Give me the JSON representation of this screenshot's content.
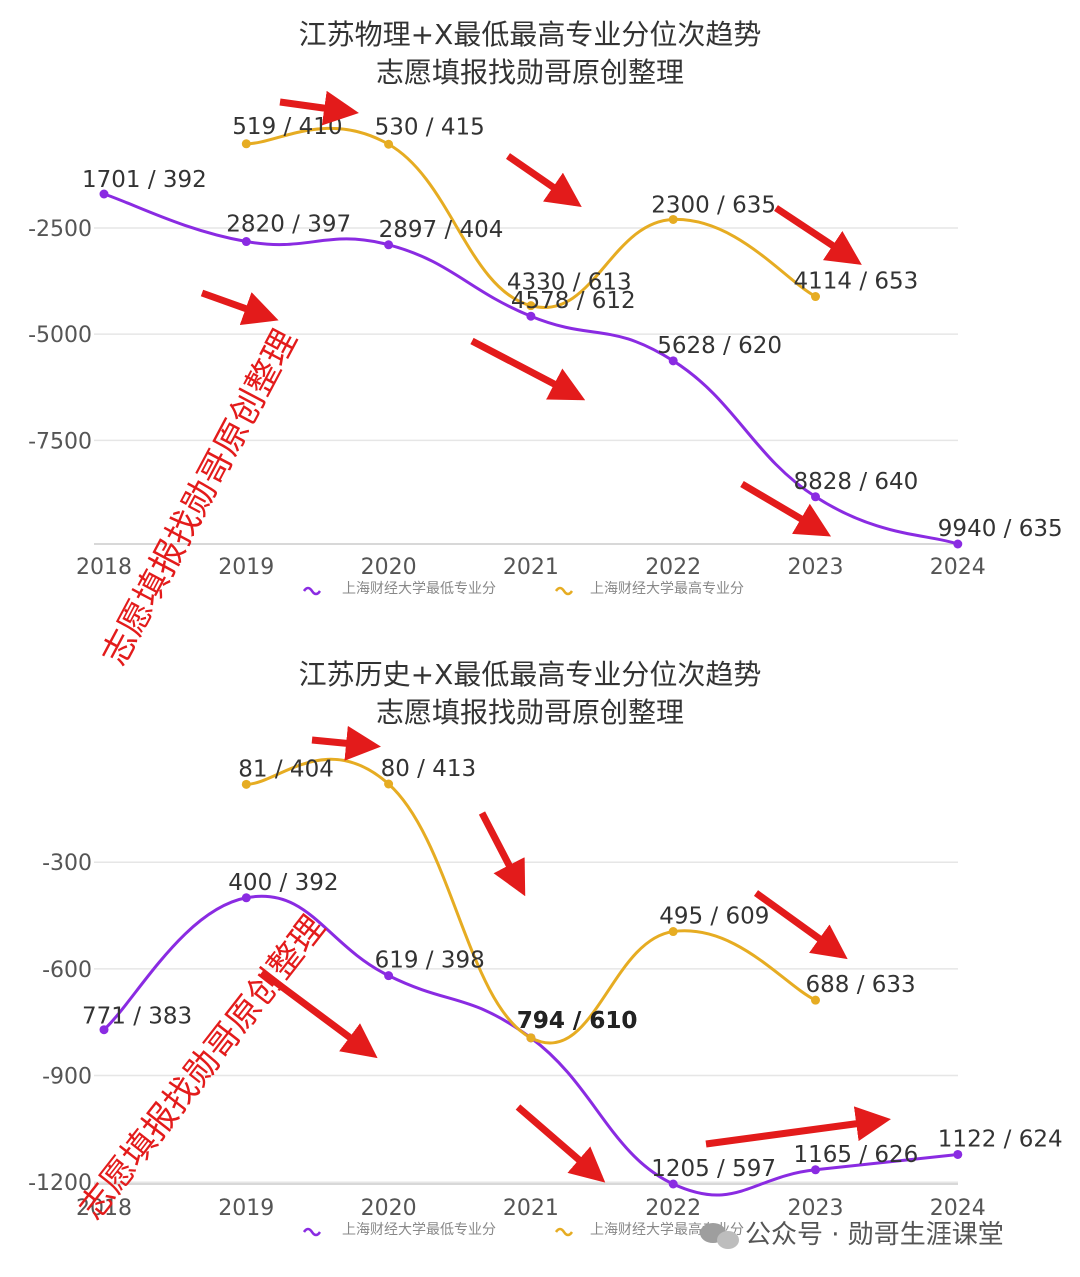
{
  "colors": {
    "low_series": "#8a2be2",
    "high_series": "#e6ac22",
    "arrow": "#e31b1b",
    "watermark": "#e31b1b"
  },
  "chart_data": [
    {
      "type": "line",
      "title": "江苏物理+X最低最高专业分位次趋势",
      "subtitle": "志愿填报找勋哥原创整理",
      "x": [
        "2018",
        "2019",
        "2020",
        "2021",
        "2022",
        "2023",
        "2024"
      ],
      "y_ticks": [
        "-2500",
        "-5000",
        "-7500"
      ],
      "ylim": [
        -9940,
        -800
      ],
      "legend_position": "bottom",
      "series": [
        {
          "name": "上海财经大学最低专业分",
          "values": [
            -1701,
            -2820,
            -2897,
            -4578,
            -5628,
            -8828,
            -9940
          ],
          "labels": [
            "1701 / 392",
            "2820 / 397",
            "2897 / 404",
            "4578 / 612",
            "5628 / 620",
            "8828 / 640",
            "9940 / 635"
          ]
        },
        {
          "name": "上海财经大学最高专业分",
          "values": [
            null,
            -519,
            -530,
            -4330,
            -2300,
            -4114,
            null
          ],
          "labels": [
            null,
            "519 / 410",
            "530 / 415",
            "4330 / 613",
            "2300 / 635",
            "4114 / 653",
            null
          ]
        }
      ]
    },
    {
      "type": "line",
      "title": "江苏历史+X最低最高专业分位次趋势",
      "subtitle": "志愿填报找勋哥原创整理",
      "x": [
        "2018",
        "2019",
        "2020",
        "2021",
        "2022",
        "2023",
        "2024"
      ],
      "y_ticks": [
        "-300",
        "-600",
        "-900",
        "-1200"
      ],
      "ylim": [
        -1205,
        -50
      ],
      "legend_position": "bottom",
      "series": [
        {
          "name": "上海财经大学最低专业分",
          "values": [
            -771,
            -400,
            -619,
            -794,
            -1205,
            -1165,
            -1122
          ],
          "labels": [
            "771 / 383",
            "400 / 392",
            "619 / 398",
            "794 / 610",
            "1205 / 597",
            "1165 / 626",
            "1122 / 624"
          ]
        },
        {
          "name": "上海财经大学最高专业分",
          "values": [
            null,
            -81,
            -80,
            -794,
            -495,
            -688,
            null
          ],
          "labels": [
            null,
            "81 / 404",
            "80 / 413",
            "794 / 610",
            "495 / 609",
            "688 / 633",
            null
          ]
        }
      ]
    }
  ],
  "watermarks": [
    "志愿填报找勋哥原创整理",
    "志愿填报找勋哥原创整理"
  ],
  "footer": {
    "icon": "wechat-icon",
    "text": "公众号 · 勋哥生涯课堂"
  }
}
